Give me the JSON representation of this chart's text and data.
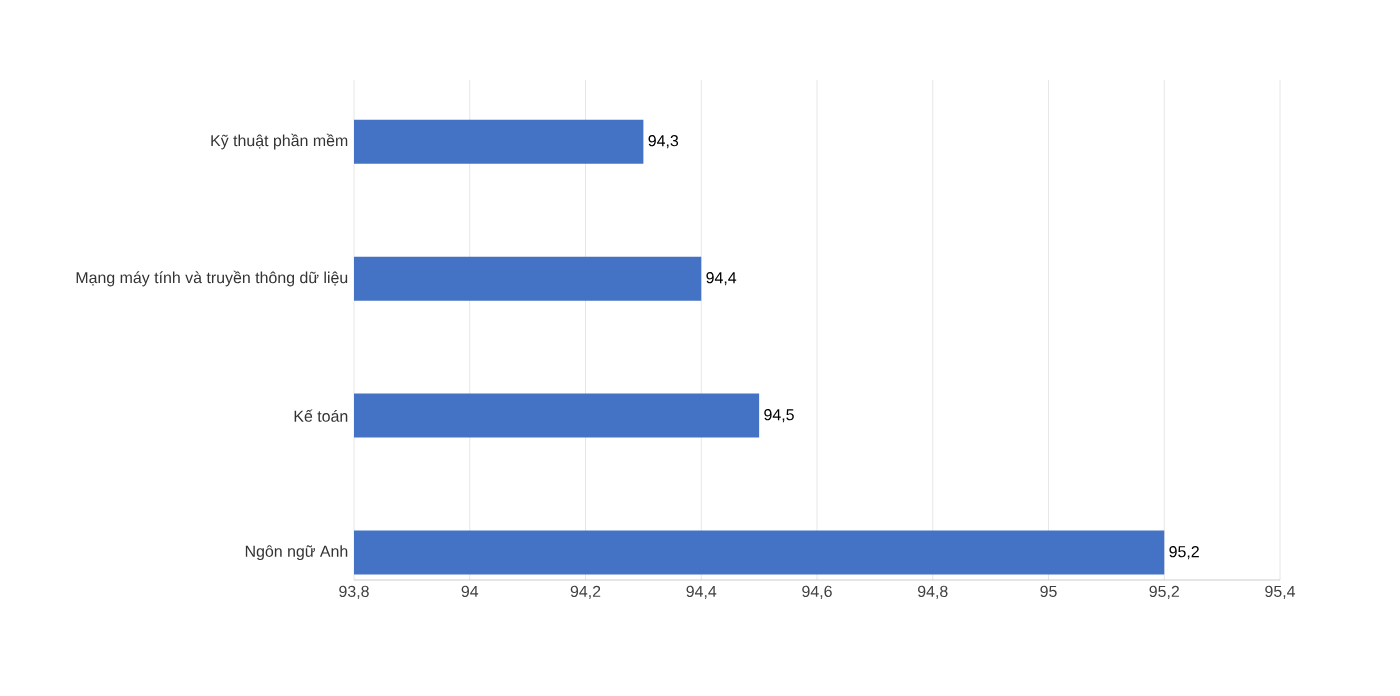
{
  "chart_data": {
    "type": "bar",
    "orientation": "horizontal",
    "categories": [
      "Kỹ thuật phần mềm",
      "Mạng máy tính và truyền thông dữ liệu",
      "Kế toán",
      "Ngôn ngữ Anh"
    ],
    "values": [
      94.3,
      94.4,
      94.5,
      95.2
    ],
    "value_labels": [
      "94,3",
      "94,4",
      "94,5",
      "95,2"
    ],
    "color": "#4472c4",
    "xlim": [
      93.8,
      95.4
    ],
    "xticks": [
      {
        "value": 93.8,
        "label": "93,8"
      },
      94,
      {
        "value": 94.2,
        "label": "94,2"
      },
      {
        "value": 94.4,
        "label": "94,4"
      },
      {
        "value": 94.6,
        "label": "94,6"
      },
      {
        "value": 94.8,
        "label": "94,8"
      },
      95,
      {
        "value": 95.2,
        "label": "95,2"
      },
      {
        "value": 95.4,
        "label": "95,4"
      }
    ],
    "grid": "x"
  }
}
